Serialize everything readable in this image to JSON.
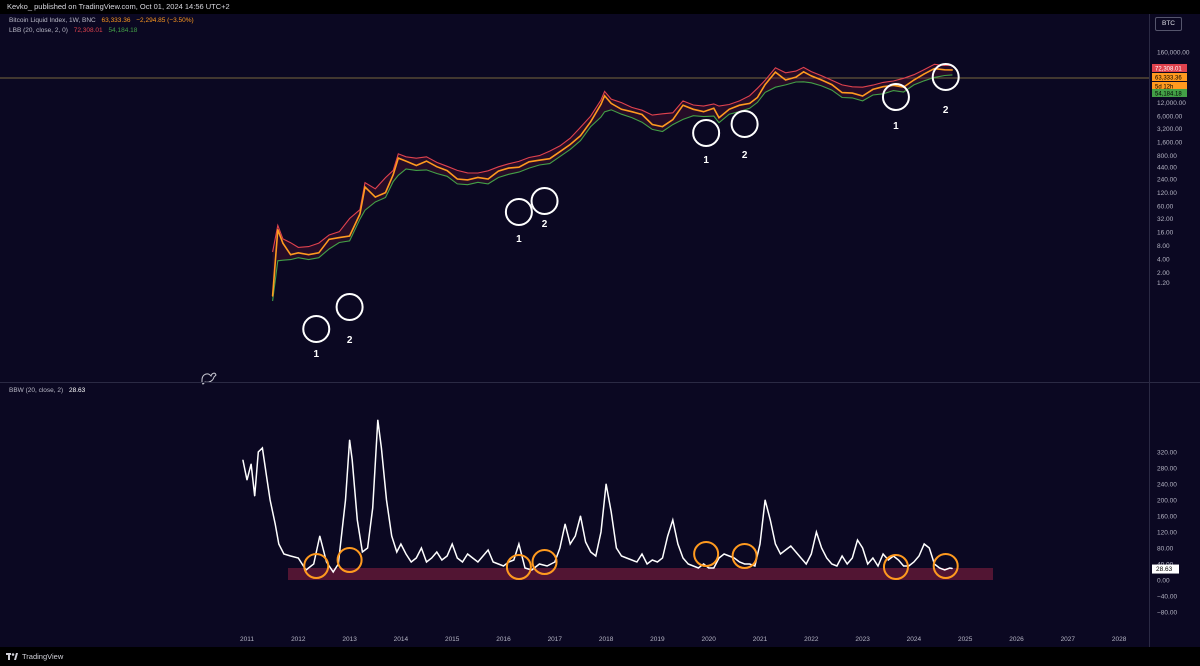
{
  "header": {
    "publish_line": "Kevko_ published on TradingView.com, Oct 01, 2024 14:56 UTC+2"
  },
  "legend_main": {
    "title": "Bitcoin Liquid Index, 1W, BNC",
    "price": "63,333.36",
    "change": "−2,294.85 (−3.50%)",
    "indicator": "LBB (20, close, 2, 0)",
    "upper": "72,308.01",
    "lower": "54,184.18"
  },
  "legend_bbw": {
    "indicator": "BBW (20, close, 2)",
    "value": "28.63"
  },
  "symbol_tag": "BTC",
  "footer": {
    "brand": "TradingView"
  },
  "colors": {
    "background": "#0b0822",
    "price": "#ff9a1f",
    "upper_band": "#e0424e",
    "lower_band": "#43a047",
    "bbw": "#ffffff",
    "highlight_zone": "#6b1a3a",
    "circle_white": "#ffffff",
    "circle_orange": "#ff9a1f"
  },
  "chart_data": [
    {
      "type": "line",
      "title": "Bitcoin Liquid Index, 1W, BNC",
      "yscale": "log",
      "y_ticks": [
        "160,000.00",
        "48,000.00",
        "24,000.00",
        "12,000.00",
        "6,000.00",
        "3,200.00",
        "1,600.00",
        "800.00",
        "440.00",
        "240.00",
        "120.00",
        "60.00",
        "32.00",
        "16.00",
        "8.00",
        "4.00",
        "2.00",
        "1.20"
      ],
      "price_labels": {
        "upper": "72,308.01",
        "price": "63,333.36",
        "timer": "5d 12h",
        "lower": "54,184.18"
      },
      "x": [
        2011.5,
        2011.6,
        2011.7,
        2011.85,
        2012.0,
        2012.2,
        2012.4,
        2012.6,
        2012.8,
        2013.0,
        2013.2,
        2013.3,
        2013.5,
        2013.7,
        2013.85,
        2013.95,
        2014.1,
        2014.3,
        2014.5,
        2014.7,
        2014.9,
        2015.1,
        2015.3,
        2015.5,
        2015.7,
        2015.9,
        2016.1,
        2016.3,
        2016.5,
        2016.7,
        2016.9,
        2017.1,
        2017.3,
        2017.5,
        2017.7,
        2017.9,
        2017.97,
        2018.1,
        2018.3,
        2018.5,
        2018.7,
        2018.9,
        2019.1,
        2019.3,
        2019.5,
        2019.7,
        2019.9,
        2020.1,
        2020.2,
        2020.4,
        2020.6,
        2020.8,
        2020.95,
        2021.1,
        2021.3,
        2021.5,
        2021.7,
        2021.85,
        2022.0,
        2022.2,
        2022.4,
        2022.6,
        2022.8,
        2023.0,
        2023.2,
        2023.4,
        2023.6,
        2023.8,
        2024.0,
        2024.2,
        2024.4,
        2024.6,
        2024.75
      ],
      "series": [
        {
          "name": "",
          "values": [
            0.6,
            18,
            9,
            5,
            5.5,
            5,
            5.5,
            11,
            12,
            13,
            40,
            160,
            95,
            120,
            300,
            700,
            600,
            480,
            600,
            450,
            370,
            240,
            230,
            260,
            240,
            360,
            420,
            440,
            580,
            630,
            680,
            970,
            1400,
            2200,
            4500,
            11000,
            17000,
            11500,
            8500,
            7500,
            6500,
            3900,
            3500,
            5000,
            10500,
            8500,
            7500,
            9000,
            5500,
            8500,
            10500,
            11500,
            15500,
            30000,
            57000,
            38000,
            44000,
            58000,
            47000,
            38000,
            30000,
            20000,
            19500,
            16800,
            23500,
            27000,
            29000,
            26500,
            38000,
            52000,
            68000,
            64000,
            63333
          ]
        }
      ],
      "annotations": [
        "1",
        "2",
        "1",
        "2",
        "1",
        "2",
        "1",
        "2"
      ]
    },
    {
      "type": "line",
      "title": "BBW (20, close, 2)",
      "y_ticks": [
        "320.00",
        "280.00",
        "240.00",
        "200.00",
        "160.00",
        "120.00",
        "80.00",
        "40.00",
        "0.00",
        "−40.00",
        "−80.00"
      ],
      "xlabels": [
        "2011",
        "2012",
        "2013",
        "2014",
        "2015",
        "2016",
        "2017",
        "2018",
        "2019",
        "2020",
        "2021",
        "2022",
        "2023",
        "2024",
        "2025",
        "2026",
        "2027",
        "2028"
      ],
      "highlight_zone": [
        0,
        30
      ],
      "x": [
        2010.92,
        2011.0,
        2011.08,
        2011.15,
        2011.22,
        2011.3,
        2011.38,
        2011.45,
        2011.55,
        2011.62,
        2011.72,
        2011.85,
        2012.0,
        2012.15,
        2012.3,
        2012.42,
        2012.55,
        2012.68,
        2012.78,
        2012.92,
        2013.0,
        2013.05,
        2013.15,
        2013.25,
        2013.35,
        2013.45,
        2013.55,
        2013.62,
        2013.72,
        2013.82,
        2013.92,
        2014.0,
        2014.1,
        2014.2,
        2014.3,
        2014.4,
        2014.5,
        2014.6,
        2014.7,
        2014.8,
        2014.9,
        2015.0,
        2015.1,
        2015.2,
        2015.3,
        2015.4,
        2015.5,
        2015.6,
        2015.7,
        2015.8,
        2015.9,
        2016.0,
        2016.1,
        2016.2,
        2016.3,
        2016.42,
        2016.55,
        2016.7,
        2016.85,
        2017.0,
        2017.1,
        2017.2,
        2017.3,
        2017.4,
        2017.5,
        2017.6,
        2017.7,
        2017.8,
        2017.9,
        2018.0,
        2018.1,
        2018.2,
        2018.3,
        2018.4,
        2018.5,
        2018.6,
        2018.7,
        2018.8,
        2018.9,
        2019.0,
        2019.1,
        2019.2,
        2019.3,
        2019.4,
        2019.5,
        2019.6,
        2019.7,
        2019.8,
        2019.9,
        2020.0,
        2020.1,
        2020.2,
        2020.3,
        2020.4,
        2020.5,
        2020.6,
        2020.7,
        2020.8,
        2020.9,
        2021.0,
        2021.1,
        2021.2,
        2021.3,
        2021.4,
        2021.5,
        2021.6,
        2021.7,
        2021.8,
        2021.9,
        2022.0,
        2022.1,
        2022.2,
        2022.3,
        2022.4,
        2022.5,
        2022.6,
        2022.7,
        2022.8,
        2022.9,
        2023.0,
        2023.1,
        2023.2,
        2023.3,
        2023.4,
        2023.5,
        2023.6,
        2023.7,
        2023.8,
        2023.9,
        2024.0,
        2024.1,
        2024.2,
        2024.3,
        2024.4,
        2024.5,
        2024.6,
        2024.7,
        2024.75
      ],
      "series": [
        {
          "name": "BBW",
          "values": [
            300,
            250,
            290,
            210,
            320,
            330,
            260,
            200,
            140,
            90,
            65,
            60,
            55,
            25,
            40,
            110,
            45,
            20,
            40,
            200,
            350,
            300,
            150,
            70,
            80,
            180,
            400,
            330,
            200,
            110,
            70,
            90,
            65,
            45,
            55,
            80,
            45,
            55,
            70,
            50,
            60,
            90,
            55,
            45,
            65,
            55,
            45,
            60,
            75,
            45,
            40,
            35,
            45,
            50,
            90,
            30,
            25,
            40,
            35,
            45,
            80,
            140,
            90,
            110,
            160,
            95,
            70,
            60,
            120,
            240,
            170,
            80,
            60,
            55,
            50,
            45,
            65,
            40,
            50,
            45,
            55,
            110,
            150,
            90,
            55,
            40,
            35,
            30,
            40,
            30,
            30,
            55,
            65,
            60,
            55,
            45,
            40,
            40,
            35,
            90,
            200,
            150,
            90,
            65,
            75,
            85,
            70,
            55,
            40,
            65,
            120,
            80,
            55,
            40,
            35,
            60,
            40,
            55,
            100,
            80,
            40,
            55,
            35,
            65,
            50,
            60,
            50,
            35,
            35,
            45,
            60,
            90,
            80,
            40,
            30,
            25,
            30,
            28.63
          ]
        }
      ],
      "value_label": "28.63"
    }
  ]
}
